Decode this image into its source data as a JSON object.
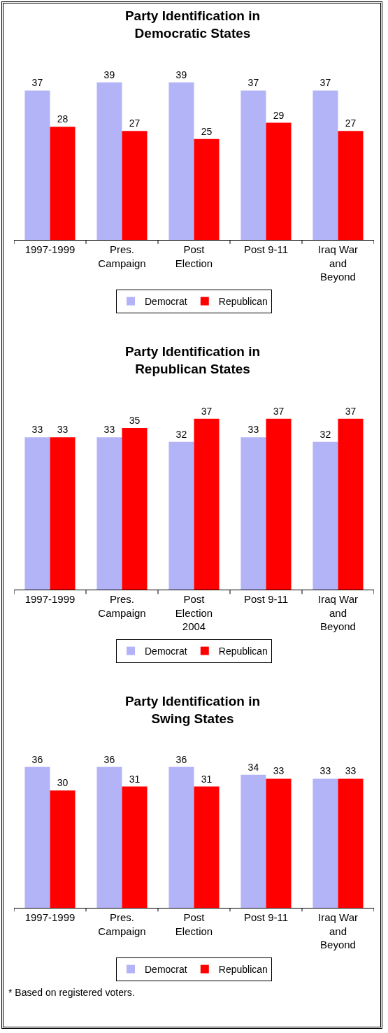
{
  "chart_data": [
    {
      "type": "bar",
      "title": "Party Identification in Democratic States",
      "categories": [
        "1997-1999",
        "Pres. Campaign",
        "Post Election",
        "Post 9-11",
        "Iraq War and Beyond"
      ],
      "series": [
        {
          "name": "Democrat",
          "color": "#b3b3f7",
          "values": [
            37,
            39,
            39,
            37,
            37
          ]
        },
        {
          "name": "Republican",
          "color": "#ff0000",
          "values": [
            28,
            27,
            25,
            29,
            27
          ]
        }
      ],
      "tick_labels": "x",
      "data_labels": true,
      "legend": "bottom"
    },
    {
      "type": "bar",
      "title": "Party Identification in Republican States",
      "categories": [
        "1997-1999",
        "Pres. Campaign",
        "Post Election 2004",
        "Post 9-11",
        "Iraq War and Beyond"
      ],
      "series": [
        {
          "name": "Democrat",
          "color": "#b3b3f7",
          "values": [
            33,
            33,
            32,
            33,
            32
          ]
        },
        {
          "name": "Republican",
          "color": "#ff0000",
          "values": [
            33,
            35,
            37,
            37,
            37
          ]
        }
      ],
      "tick_labels": "x",
      "data_labels": true,
      "legend": "bottom"
    },
    {
      "type": "bar",
      "title": "Party Identification in Swing States",
      "categories": [
        "1997-1999",
        "Pres. Campaign",
        "Post Election",
        "Post 9-11",
        "Iraq War and Beyond"
      ],
      "series": [
        {
          "name": "Democrat",
          "color": "#b3b3f7",
          "values": [
            36,
            36,
            36,
            34,
            33
          ]
        },
        {
          "name": "Republican",
          "color": "#ff0000",
          "values": [
            30,
            31,
            31,
            33,
            33
          ]
        }
      ],
      "tick_labels": "x",
      "data_labels": true,
      "legend": "bottom",
      "annotations": [
        "* Based on registered voters."
      ]
    }
  ]
}
